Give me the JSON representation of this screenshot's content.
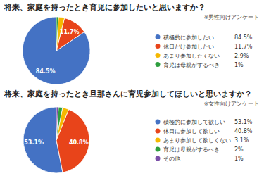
{
  "chart_data": [
    {
      "type": "pie",
      "title": "将来、家庭を持ったとき育児に参加したいと思いますか？",
      "subtitle": "※男性向けアンケート",
      "categories": [
        "積極的に参加したい",
        "休日だけ参加したい",
        "あまり参加したくない",
        "育児は母親がするべき"
      ],
      "values": [
        84.5,
        11.7,
        2.9,
        1
      ],
      "value_labels": [
        "84.5%",
        "11.7%",
        "2.9%",
        "1%"
      ],
      "colors": [
        "#4472c4",
        "#e8441a",
        "#f5b800",
        "#2e9e3e"
      ],
      "data_labels": true,
      "legend": "right"
    },
    {
      "type": "pie",
      "title": "将来、家庭を持ったとき旦那さんに育児参加してほしいと思いますか？",
      "subtitle": "※女性向けアンケート",
      "categories": [
        "積極的に参加して欲しい",
        "休日に参加して欲しい",
        "あまり参加して欲しくない",
        "育児は母親がするべき",
        "その他"
      ],
      "values": [
        53.1,
        40.8,
        3.1,
        2,
        1
      ],
      "value_labels": [
        "53.1%",
        "40.8%",
        "3.1%",
        "2%",
        "1%"
      ],
      "colors": [
        "#4472c4",
        "#e8441a",
        "#f5b800",
        "#2e9e3e",
        "#7b4fa8"
      ],
      "data_labels": true,
      "legend": "right"
    }
  ]
}
